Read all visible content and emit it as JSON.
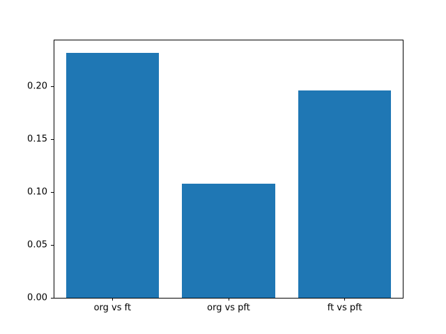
{
  "chart_data": {
    "type": "bar",
    "categories": [
      "org vs ft",
      "org vs pft",
      "ft vs pft"
    ],
    "values": [
      0.232,
      0.108,
      0.196
    ],
    "title": "",
    "xlabel": "",
    "ylabel": "",
    "ylim": [
      0,
      0.2436
    ],
    "y_ticks": [
      "0.00",
      "0.05",
      "0.10",
      "0.15",
      "0.20"
    ],
    "bar_color": "#1f77b4",
    "bar_width_fraction": 0.8,
    "grid": false,
    "legend": false
  }
}
